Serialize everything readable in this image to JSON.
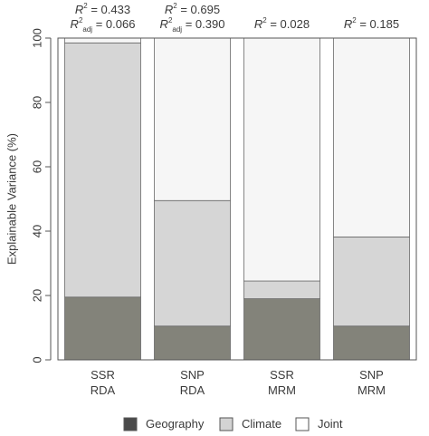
{
  "chart_data": {
    "type": "bar",
    "stacked": true,
    "ylabel": "Explainable Variance (%)",
    "ylim": [
      0,
      100
    ],
    "yticks": [
      0,
      20,
      40,
      60,
      80,
      100
    ],
    "grid": false,
    "legend_position": "bottom",
    "categories": [
      {
        "line1": "SSR",
        "line2": "RDA"
      },
      {
        "line1": "SNP",
        "line2": "RDA"
      },
      {
        "line1": "SSR",
        "line2": "MRM"
      },
      {
        "line1": "SNP",
        "line2": "MRM"
      }
    ],
    "series": [
      {
        "name": "Geography",
        "color": "#83837a",
        "legend_color": "#4a4a4a",
        "values": [
          19.5,
          10.5,
          19.0,
          10.5
        ]
      },
      {
        "name": "Climate",
        "color": "#d6d6d6",
        "legend_color": "#d3d3d3",
        "values": [
          79.0,
          39.0,
          5.5,
          27.7
        ]
      },
      {
        "name": "Joint",
        "color": "#f6f6f6",
        "legend_color": "#ffffff",
        "values": [
          1.5,
          50.5,
          75.5,
          61.8
        ]
      }
    ],
    "annotations": [
      {
        "r2_symbol": "R",
        "r2_sup": "2",
        "r2_value": "= 0.433",
        "adj_symbol": "R",
        "adj_sup": "2",
        "adj_sub": "adj",
        "adj_value": "= 0.066"
      },
      {
        "r2_symbol": "R",
        "r2_sup": "2",
        "r2_value": "= 0.695",
        "adj_symbol": "R",
        "adj_sup": "2",
        "adj_sub": "adj",
        "adj_value": "= 0.390"
      },
      {
        "r2_symbol": "R",
        "r2_sup": "2",
        "r2_value": "= 0.028"
      },
      {
        "r2_symbol": "R",
        "r2_sup": "2",
        "r2_value": "= 0.185"
      }
    ]
  }
}
